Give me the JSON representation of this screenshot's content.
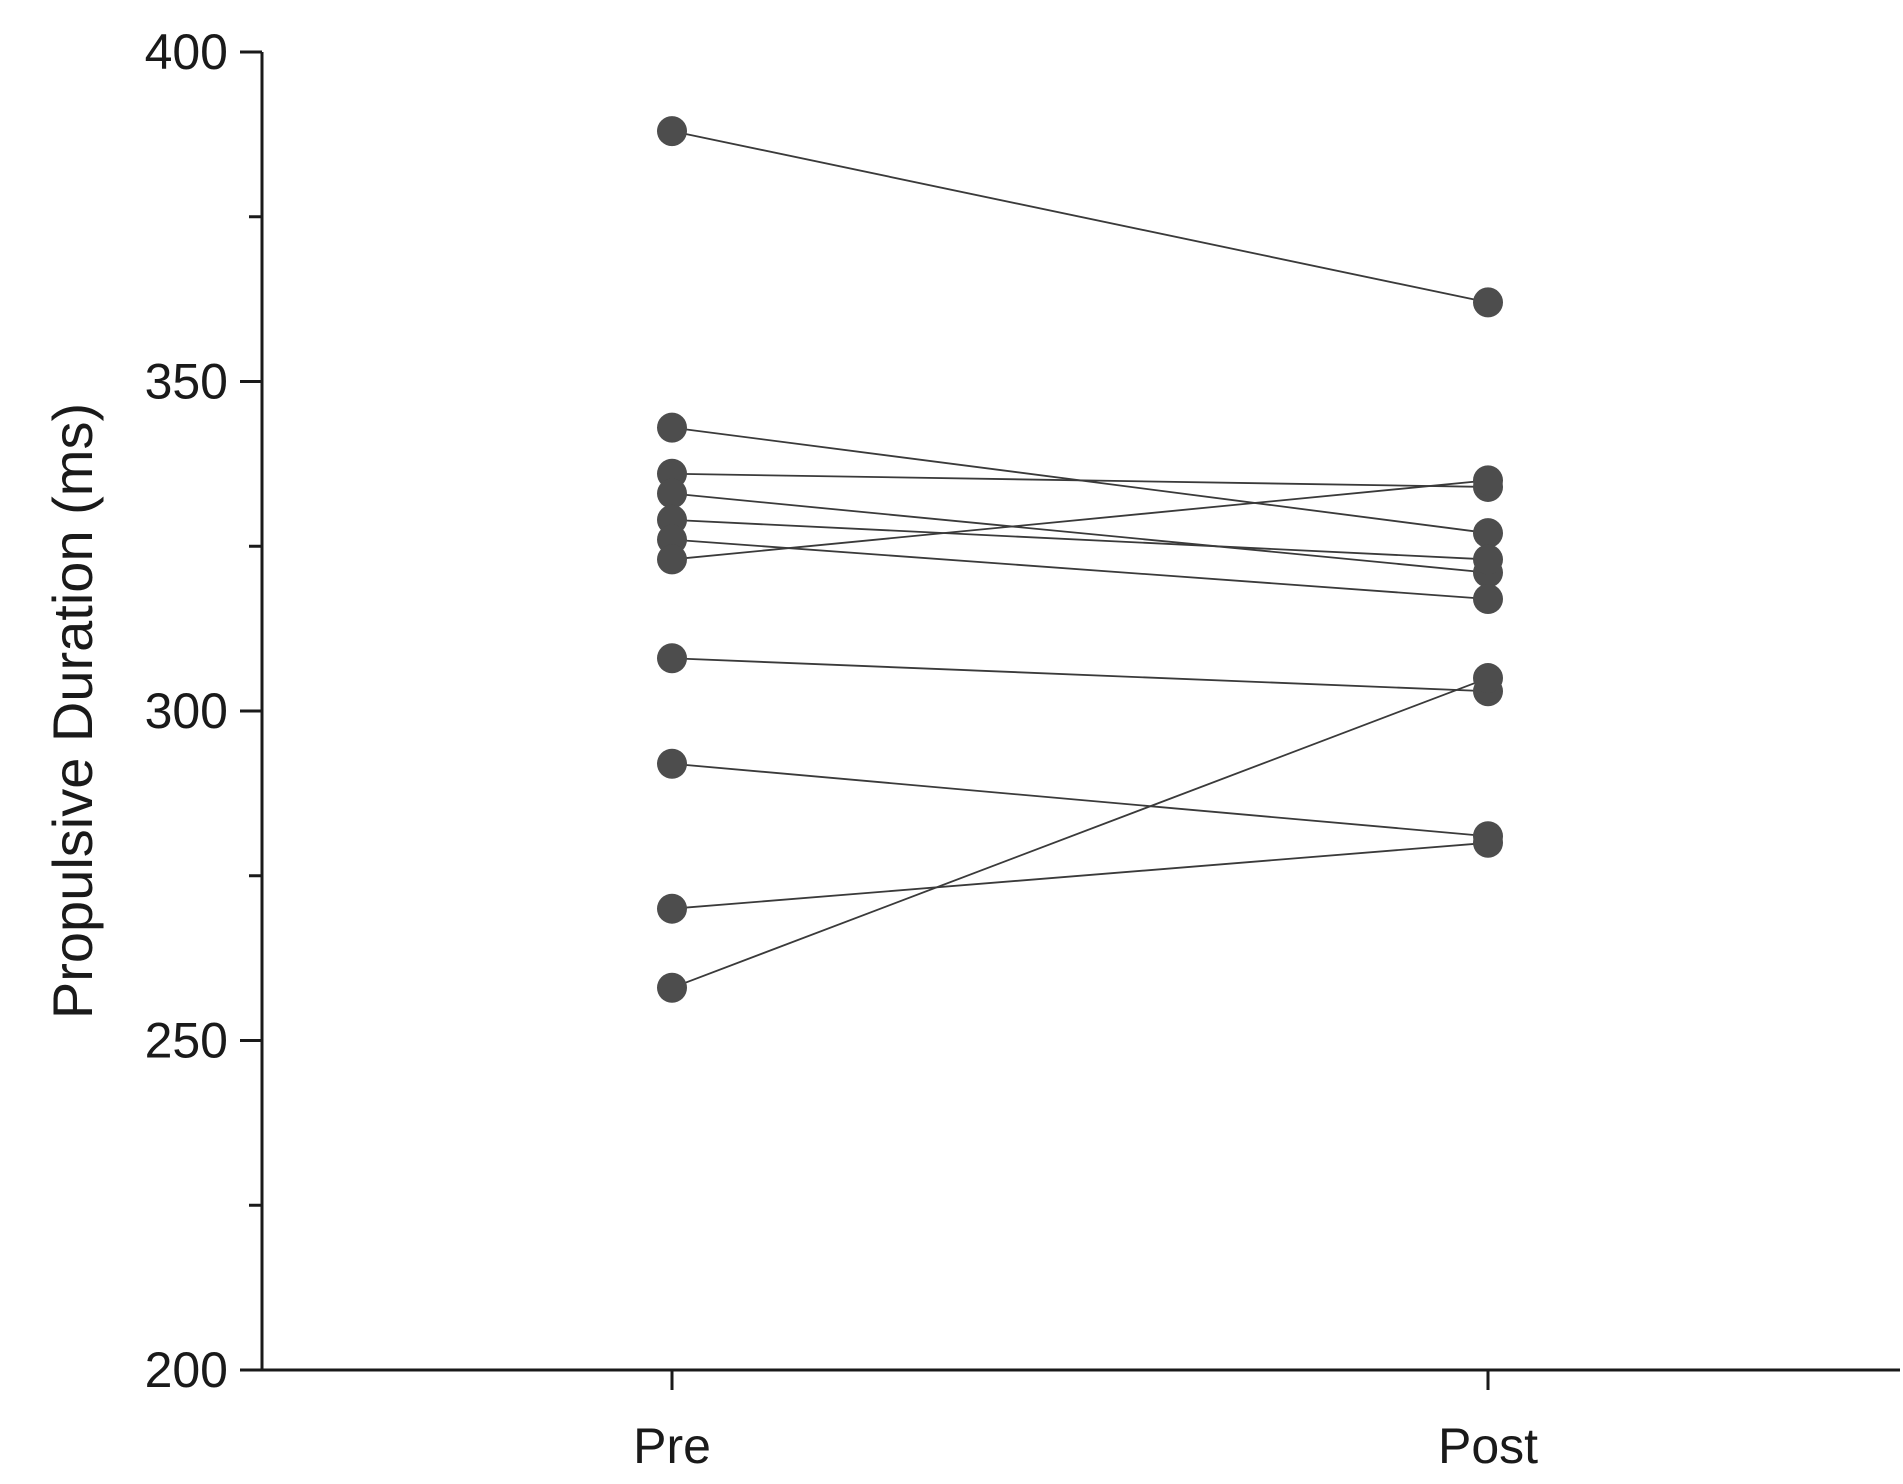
{
  "chart_data": {
    "type": "line",
    "title": "",
    "xlabel": "",
    "ylabel": "Propulsive Duration (ms)",
    "categories": [
      "Pre",
      "Post"
    ],
    "ylim": [
      200,
      400
    ],
    "yticks": [
      200,
      250,
      300,
      350,
      400
    ],
    "grid": false,
    "legend": "none",
    "colors": {
      "point": "#4d4d4d",
      "line": "#3a3a3a",
      "axis": "#1a1a1a"
    },
    "series": [
      {
        "values": [
          388,
          362
        ]
      },
      {
        "values": [
          343,
          327
        ]
      },
      {
        "values": [
          336,
          334
        ]
      },
      {
        "values": [
          333,
          321
        ]
      },
      {
        "values": [
          329,
          323
        ]
      },
      {
        "values": [
          326,
          317
        ]
      },
      {
        "values": [
          323,
          335
        ]
      },
      {
        "values": [
          308,
          303
        ]
      },
      {
        "values": [
          292,
          281
        ]
      },
      {
        "values": [
          270,
          280
        ]
      },
      {
        "values": [
          258,
          305
        ]
      }
    ]
  }
}
